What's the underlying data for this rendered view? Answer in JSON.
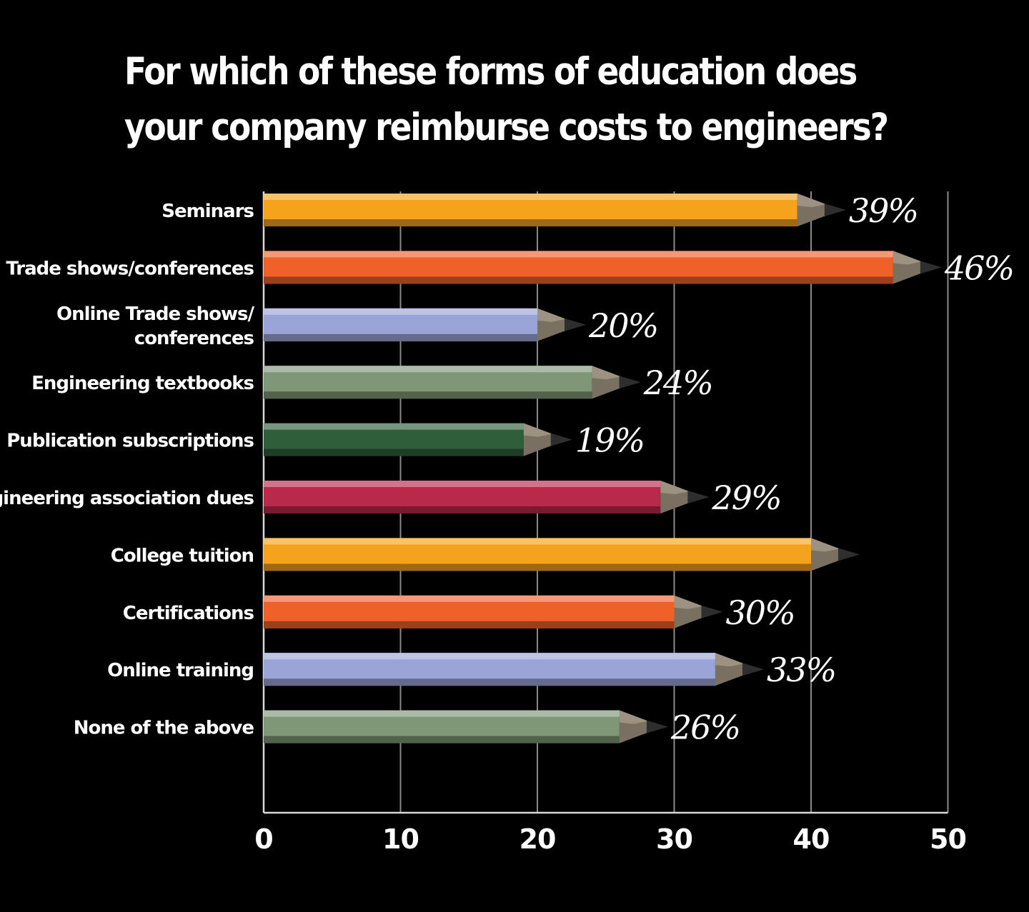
{
  "chart_data": {
    "type": "bar",
    "orientation": "horizontal",
    "title_lines": [
      "For which of these forms of education does",
      "your company reimburse costs to engineers?"
    ],
    "categories": [
      [
        "Seminars"
      ],
      [
        "Trade shows/conferences"
      ],
      [
        "Online Trade shows/",
        "conferences"
      ],
      [
        "Engineering textbooks"
      ],
      [
        "Publication subscriptions"
      ],
      [
        "Engineering association dues"
      ],
      [
        "College tuition"
      ],
      [
        "Certifications"
      ],
      [
        "Online training"
      ],
      [
        "None of the above"
      ]
    ],
    "values": [
      39,
      46,
      20,
      24,
      19,
      29,
      40,
      30,
      33,
      26
    ],
    "value_labels": [
      "39%",
      "46%",
      "20%",
      "24%",
      "19%",
      "29%",
      "",
      "30%",
      "33%",
      "26%"
    ],
    "bar_colors": [
      "#f5a21d",
      "#f0612a",
      "#9aa4d6",
      "#7f9677",
      "#2f5e3a",
      "#b8294a",
      "#f5a21d",
      "#f0612a",
      "#9aa4d6",
      "#7f9677"
    ],
    "xlim": [
      0,
      50
    ],
    "xticks": [
      "0",
      "10",
      "20",
      "30",
      "40",
      "50"
    ],
    "grid": "vertical"
  }
}
